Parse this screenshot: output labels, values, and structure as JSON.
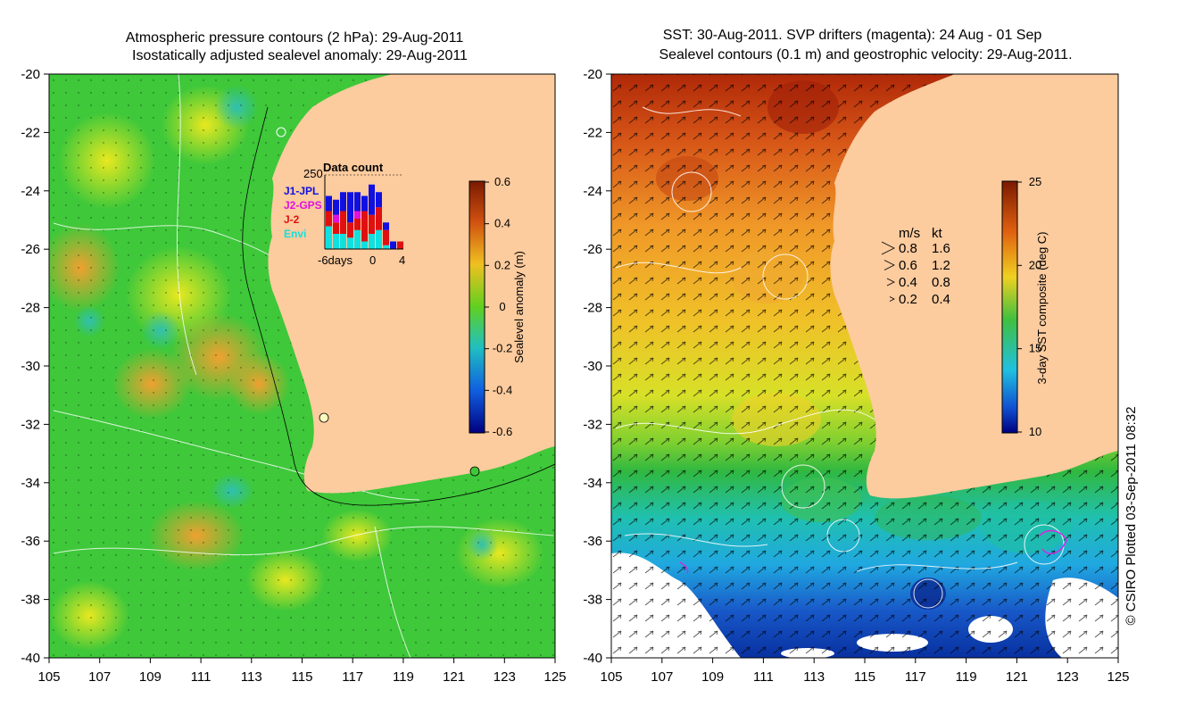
{
  "left_panel": {
    "title_line1": "Atmospheric pressure contours (2 hPa): 29-Aug-2011",
    "title_line2": "Isostatically adjusted sealevel anomaly: 29-Aug-2011",
    "colorbar": {
      "label": "Sealevel anomaly (m)",
      "ticks": [
        "0.6",
        "0.4",
        "0.2",
        "0",
        "-0.2",
        "-0.4",
        "-0.6"
      ]
    },
    "data_count": {
      "title": "Data count",
      "ymax_label": "250",
      "xlabel_left": "-6days",
      "xlabel_mid": "0",
      "xlabel_right": "4",
      "legend": [
        {
          "label": "J1-JPL",
          "color": "#1010e0"
        },
        {
          "label": "J2-GPS",
          "color": "#e010e0"
        },
        {
          "label": "J-2",
          "color": "#e01010"
        },
        {
          "label": "Envi",
          "color": "#10e0e0"
        }
      ]
    }
  },
  "right_panel": {
    "title_line1": "SST: 30-Aug-2011. SVP drifters (magenta): 24 Aug - 01 Sep",
    "title_line2": "Sealevel contours (0.1 m) and geostrophic velocity: 29-Aug-2011.",
    "colorbar": {
      "label": "3-day SST composite (deg C)",
      "ticks": [
        "25",
        "20",
        "15",
        "10"
      ]
    },
    "velocity_legend": {
      "header_ms": "m/s",
      "header_kt": "kt",
      "rows": [
        {
          "ms": "0.8",
          "kt": "1.6"
        },
        {
          "ms": "0.6",
          "kt": "1.2"
        },
        {
          "ms": "0.4",
          "kt": "0.8"
        },
        {
          "ms": "0.2",
          "kt": "0.4"
        }
      ]
    }
  },
  "axes": {
    "lat_ticks": [
      "-20",
      "-22",
      "-24",
      "-26",
      "-28",
      "-30",
      "-32",
      "-34",
      "-36",
      "-38",
      "-40"
    ],
    "lon_ticks": [
      "105",
      "107",
      "109",
      "111",
      "113",
      "115",
      "117",
      "119",
      "121",
      "123",
      "125"
    ]
  },
  "credit": "© CSIRO Plotted 03-Sep-2011 08:32",
  "colors": {
    "land": "#fccb9e",
    "ocean_green": "#3ec83a",
    "ocean_yellow": "#e0e820",
    "anomaly_orange": "#f0a030",
    "anomaly_cyan": "#30c8a0",
    "sst_red": "#c83010",
    "sst_orange": "#f09020",
    "sst_green": "#40b840",
    "sst_cyan": "#20c0e0",
    "sst_blue": "#1040c0"
  }
}
